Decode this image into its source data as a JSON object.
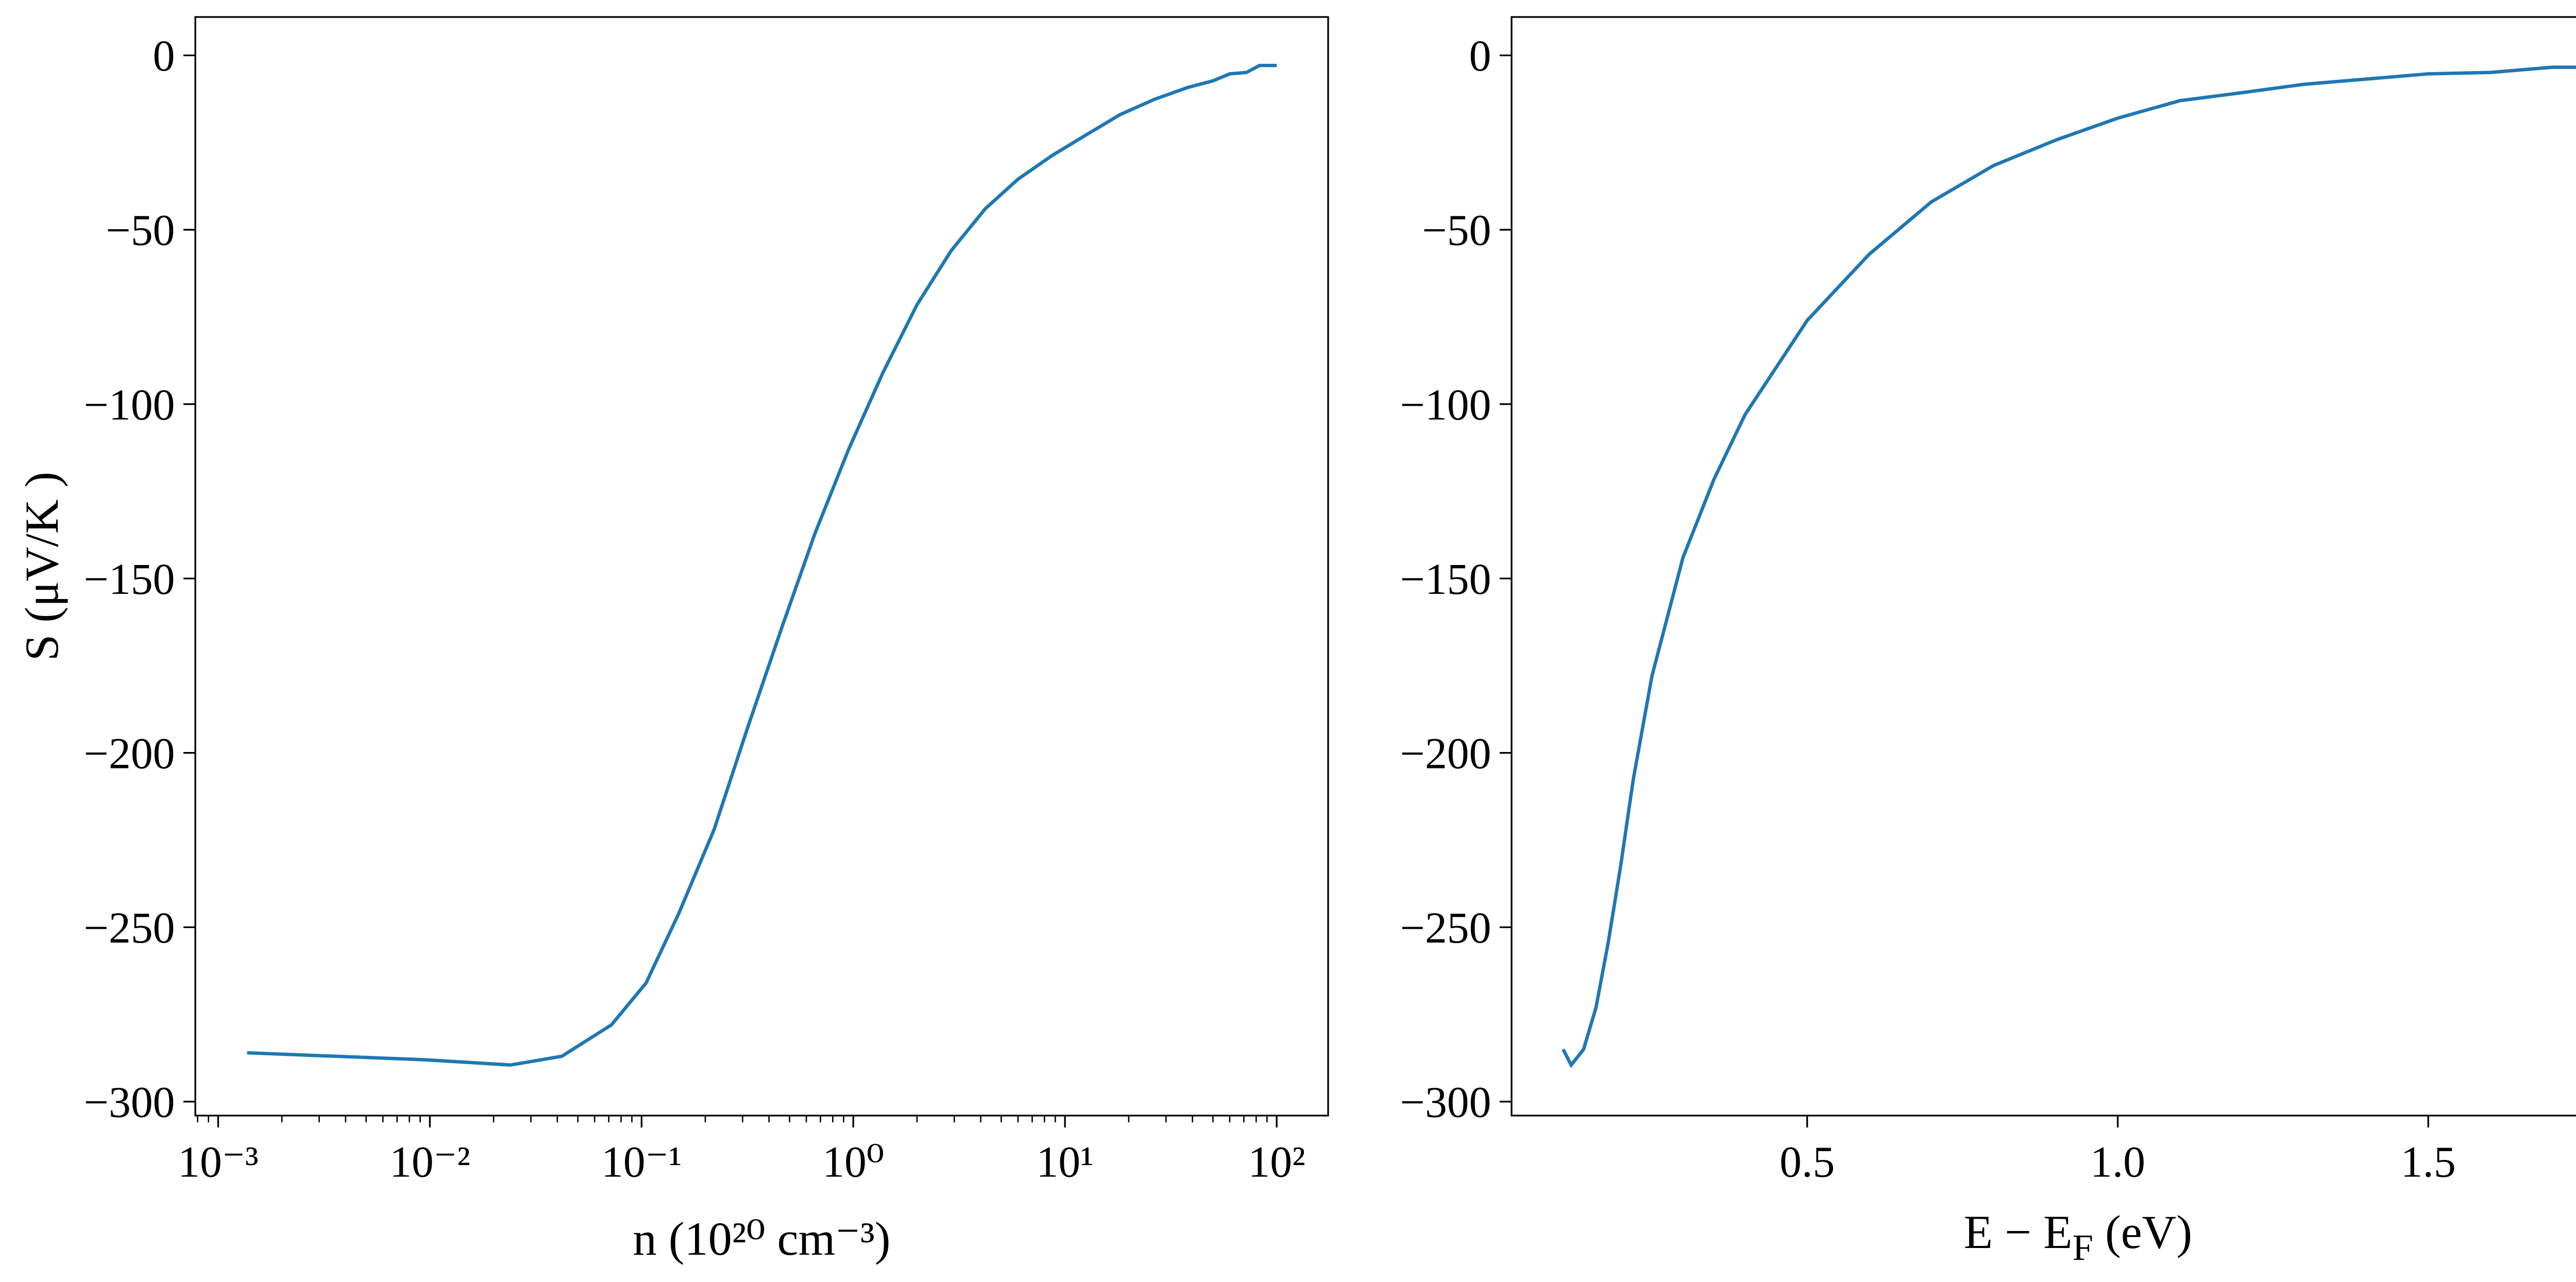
{
  "chart_data": [
    {
      "type": "line",
      "log_x": true,
      "color": "#1f77b4",
      "xlabel": "n (10²⁰ cm⁻³)",
      "ylabel": "S (μV/K )",
      "x": [
        0.00137,
        0.0095,
        0.024,
        0.042,
        0.072,
        0.105,
        0.15,
        0.22,
        0.316,
        0.46,
        0.66,
        0.95,
        1.38,
        2.0,
        2.9,
        4.2,
        6.0,
        8.7,
        12.6,
        18.2,
        26.5,
        38,
        50,
        60,
        72,
        83,
        100
      ],
      "values": [
        -286,
        -288,
        -289.5,
        -287,
        -278,
        -266,
        -246,
        -222,
        -193,
        -164,
        -137,
        -113,
        -91,
        -71.5,
        -56,
        -44,
        -35.5,
        -28.7,
        -22.8,
        -17,
        -12.6,
        -9.2,
        -7.3,
        -5.3,
        -4.9,
        -2.9,
        -2.9
      ],
      "xlim": [
        0.00078,
        175
      ],
      "xticks": [
        {
          "value": 0.001,
          "label": "10⁻³"
        },
        {
          "value": 0.01,
          "label": "10⁻²"
        },
        {
          "value": 0.1,
          "label": "10⁻¹"
        },
        {
          "value": 1,
          "label": "10⁰"
        },
        {
          "value": 10,
          "label": "10¹"
        },
        {
          "value": 100,
          "label": "10²"
        }
      ],
      "ylim": [
        -304,
        11
      ],
      "yticks": [
        0,
        {
          "value": -50,
          "label": "−50"
        },
        {
          "value": -100,
          "label": "−100"
        },
        {
          "value": -150,
          "label": "−150"
        },
        {
          "value": -200,
          "label": "−200"
        },
        {
          "value": -250,
          "label": "−250"
        },
        {
          "value": -300,
          "label": "−300"
        }
      ]
    },
    {
      "type": "line",
      "log_x": false,
      "color": "#1f77b4",
      "xlabel": [
        "E − E",
        "F",
        " (eV)"
      ],
      "x": [
        0.107,
        0.12,
        0.14,
        0.16,
        0.18,
        0.2,
        0.22,
        0.25,
        0.3,
        0.35,
        0.4,
        0.5,
        0.6,
        0.7,
        0.8,
        0.9,
        1.0,
        1.1,
        1.2,
        1.3,
        1.4,
        1.5,
        1.6,
        1.7,
        1.75
      ],
      "values": [
        -285,
        -289.5,
        -285,
        -273,
        -254,
        -232,
        -207.6,
        -178,
        -144,
        -121.5,
        -103,
        -76,
        -57,
        -42,
        -31.6,
        -24.3,
        -18,
        -13,
        -10.7,
        -8.3,
        -6.8,
        -5.3,
        -4.9,
        -3.4,
        -3.4
      ],
      "xlim": [
        0.024,
        1.848
      ],
      "xticks": [
        0.5,
        {
          "value": 1,
          "label": "1.0"
        },
        1.5
      ],
      "ylim": [
        -304,
        11
      ],
      "yticks": [
        0,
        {
          "value": -50,
          "label": "−50"
        },
        {
          "value": -100,
          "label": "−100"
        },
        {
          "value": -150,
          "label": "−150"
        },
        {
          "value": -200,
          "label": "−200"
        },
        {
          "value": -250,
          "label": "−250"
        },
        {
          "value": -300,
          "label": "−300"
        }
      ]
    }
  ]
}
